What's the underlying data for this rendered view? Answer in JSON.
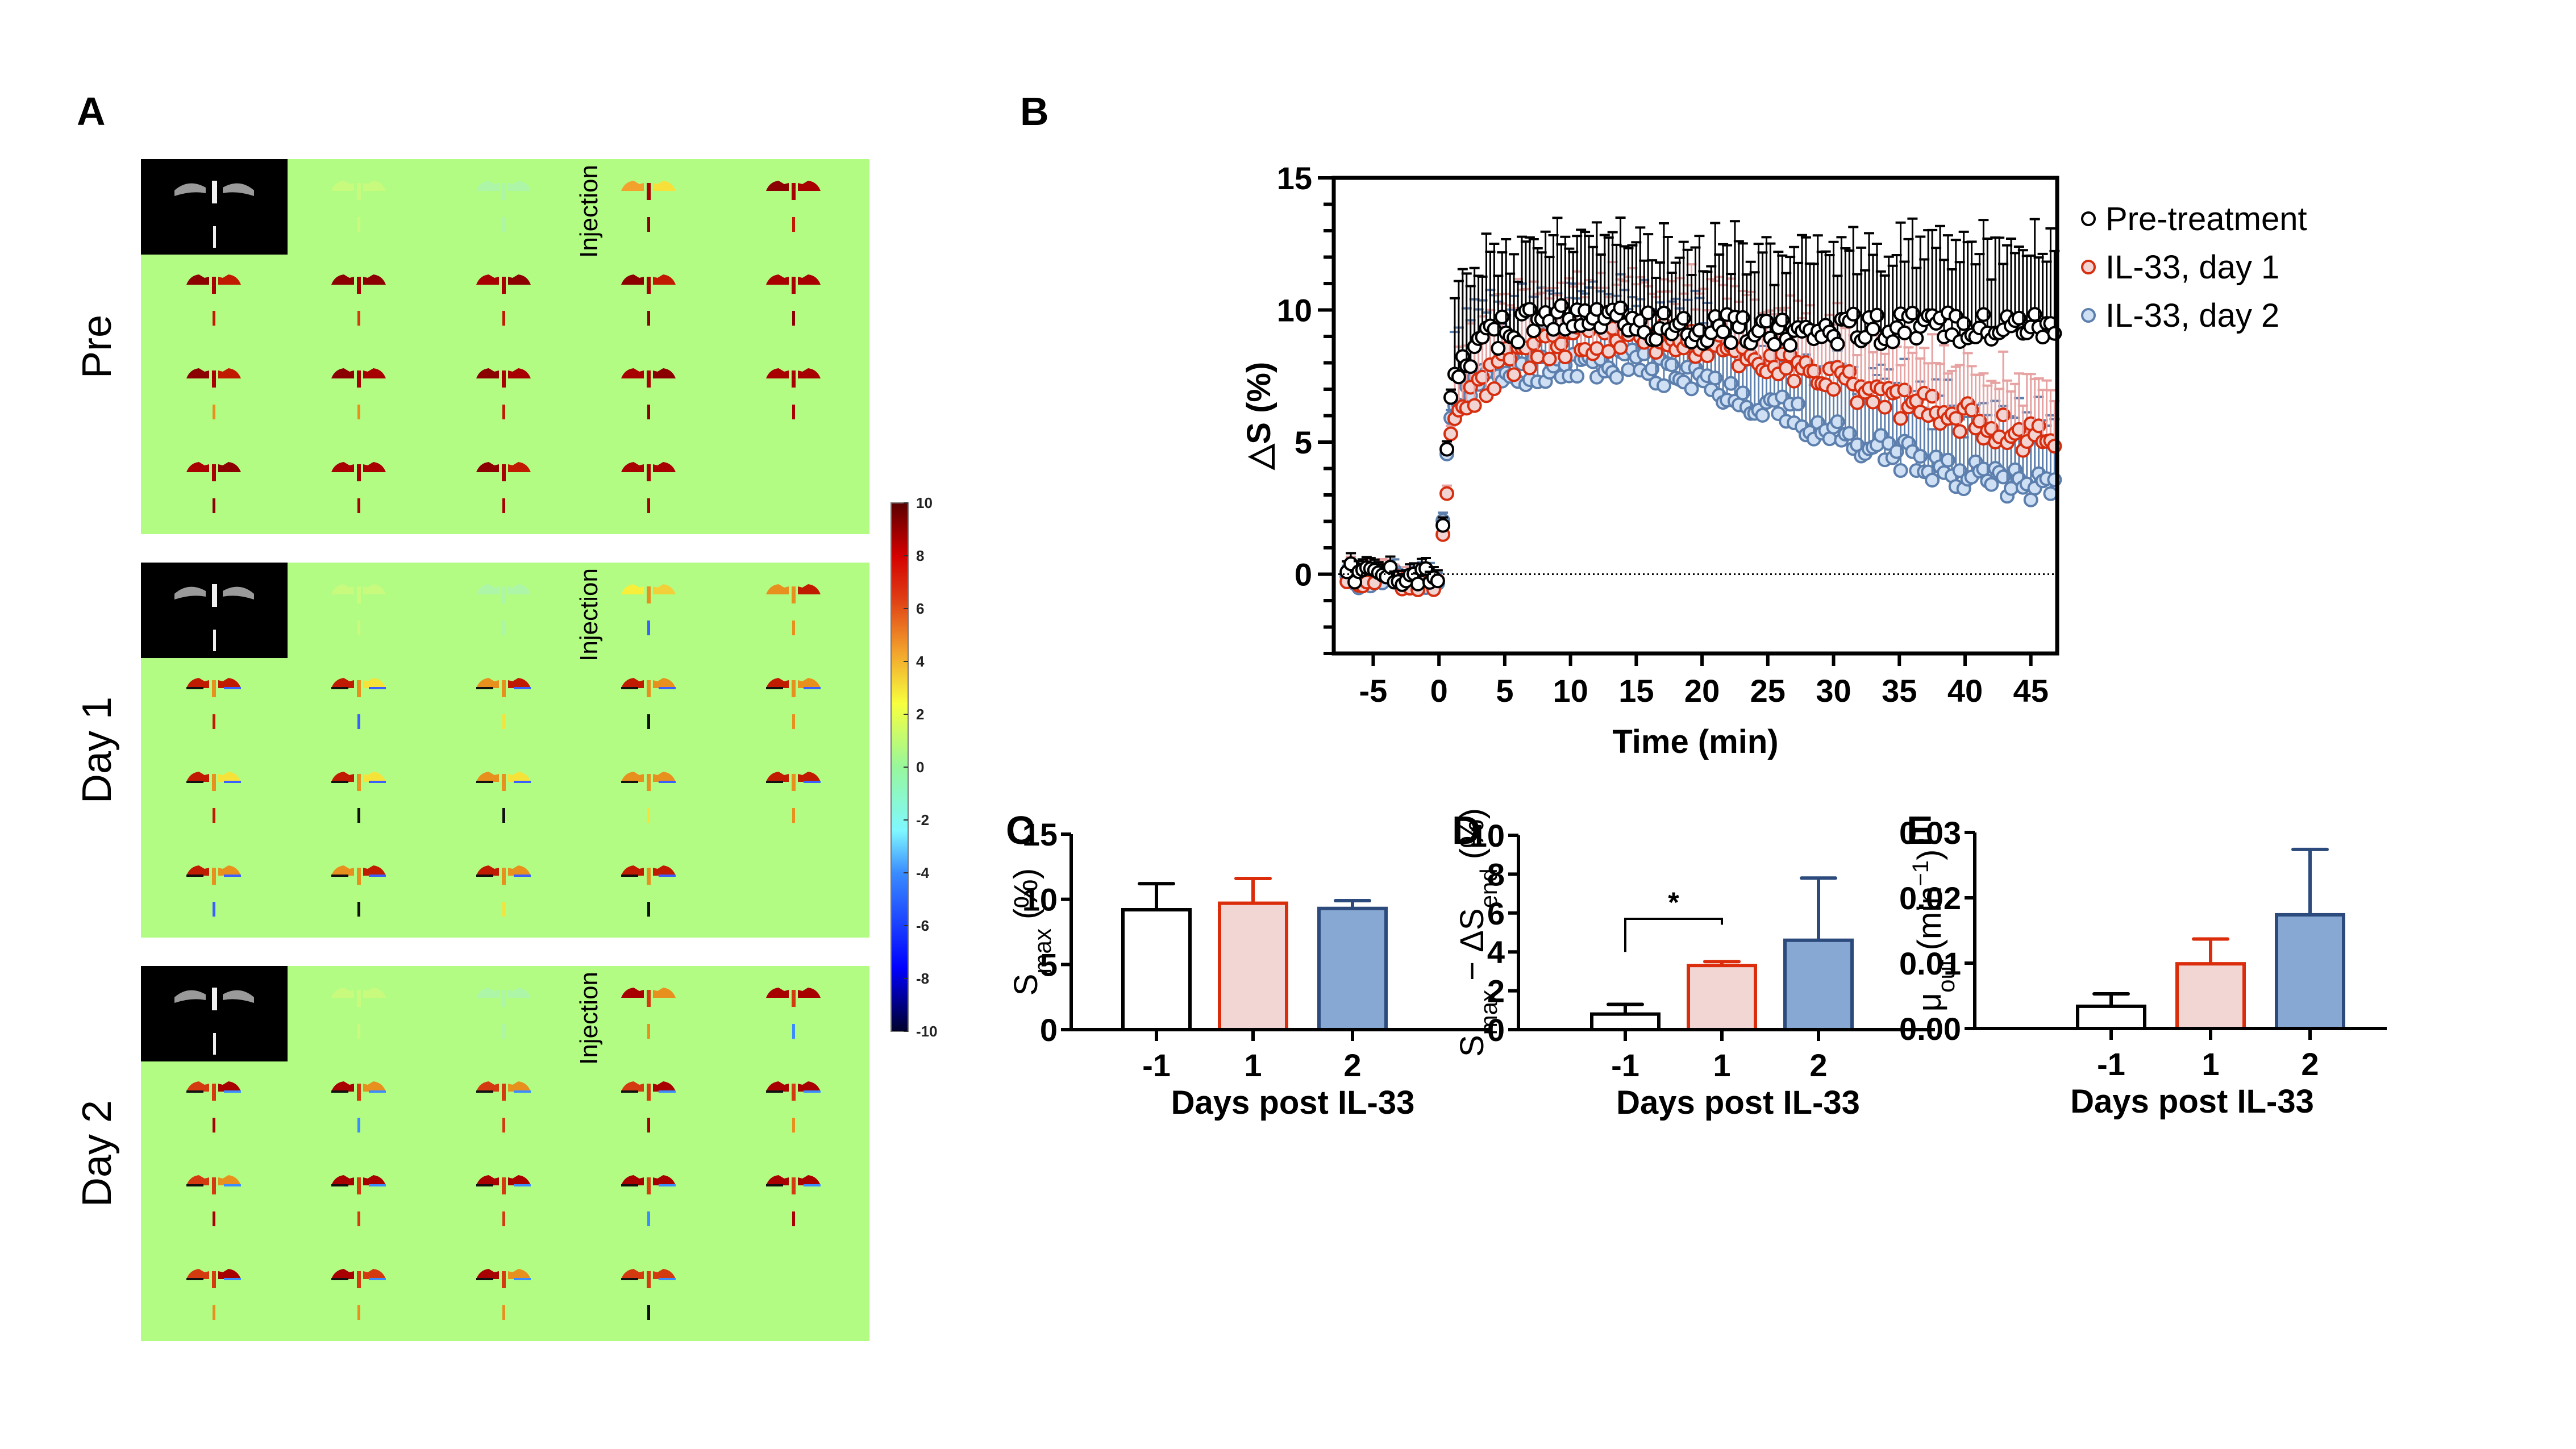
{
  "figure": {
    "panel_letters": {
      "a": "A",
      "b": "B",
      "c": "C",
      "d": "D",
      "e": "E"
    }
  },
  "panel_a": {
    "rows": [
      {
        "label": "Pre",
        "injection_label": "Injection",
        "frames": 19,
        "intensity": "strong-positive"
      },
      {
        "label": "Day 1",
        "injection_label": "Injection",
        "frames": 19,
        "intensity": "mixed"
      },
      {
        "label": "Day 2",
        "injection_label": "Injection",
        "frames": 19,
        "intensity": "positive-with-negative-edges"
      }
    ],
    "background_color": "#b3fc84",
    "colorbar": {
      "ticks": [
        "10",
        "8",
        "6",
        "4",
        "2",
        "0",
        "-2",
        "-4",
        "-6",
        "-8",
        "-10"
      ],
      "range": [
        -10,
        10
      ],
      "colormap": "jet"
    }
  },
  "chart_data": [
    {
      "id": "B",
      "type": "scatter",
      "title": "",
      "xlabel": "Time (min)",
      "ylabel": "△S (%)",
      "xlim": [
        -8,
        47
      ],
      "ylim": [
        -3,
        15
      ],
      "xticks": [
        "-5",
        "0",
        "5",
        "10",
        "15",
        "20",
        "25",
        "30",
        "35",
        "40",
        "45"
      ],
      "xtick_values": [
        -5,
        0,
        5,
        10,
        15,
        20,
        25,
        30,
        35,
        40,
        45
      ],
      "yticks": [
        "0",
        "5",
        "10",
        "15"
      ],
      "ytick_values": [
        0,
        5,
        10,
        15
      ],
      "reference_line_y": 0,
      "legend": "top-right-outside",
      "series": [
        {
          "name": "Pre-treatment",
          "color": "#000000",
          "fill": "#ffffff",
          "baseline": 0.0,
          "plateau": 9.5,
          "decay_start": 47,
          "end_value": 9.4,
          "sd_upper": 2.8,
          "key_points": [
            [
              -7,
              0.0
            ],
            [
              0,
              -0.1
            ],
            [
              0.3,
              1.3
            ],
            [
              0.6,
              4.3
            ],
            [
              0.9,
              6.9
            ],
            [
              2,
              8.3
            ],
            [
              5,
              9.3
            ],
            [
              10,
              9.7
            ],
            [
              15,
              9.5
            ],
            [
              20,
              9.3
            ],
            [
              25,
              9.2
            ],
            [
              30,
              9.3
            ],
            [
              35,
              9.3
            ],
            [
              40,
              9.4
            ],
            [
              45,
              9.6
            ],
            [
              47,
              9.3
            ]
          ]
        },
        {
          "name": "IL-33, day 1",
          "color": "#d62e0e",
          "fill": "#f2d4d3",
          "baseline": -0.2,
          "key_points": [
            [
              -7,
              -0.1
            ],
            [
              0,
              -0.3
            ],
            [
              0.3,
              1.7
            ],
            [
              0.6,
              3.4
            ],
            [
              0.9,
              4.9
            ],
            [
              2,
              6.5
            ],
            [
              5,
              8.0
            ],
            [
              10,
              8.8
            ],
            [
              15,
              9.0
            ],
            [
              20,
              8.7
            ],
            [
              25,
              8.0
            ],
            [
              30,
              7.3
            ],
            [
              35,
              6.5
            ],
            [
              40,
              5.9
            ],
            [
              45,
              5.2
            ],
            [
              47,
              5.3
            ]
          ],
          "sd_upper": 2.0
        },
        {
          "name": "IL-33, day 2",
          "color": "#5c7fad",
          "fill": "#cfe0f5",
          "baseline": -0.3,
          "key_points": [
            [
              -7,
              -0.2
            ],
            [
              0,
              -0.2
            ],
            [
              0.3,
              2.1
            ],
            [
              0.6,
              4.5
            ],
            [
              0.9,
              5.8
            ],
            [
              2,
              7.2
            ],
            [
              5,
              7.6
            ],
            [
              10,
              8.0
            ],
            [
              15,
              7.9
            ],
            [
              20,
              7.3
            ],
            [
              25,
              6.4
            ],
            [
              30,
              5.3
            ],
            [
              35,
              4.5
            ],
            [
              40,
              3.8
            ],
            [
              45,
              3.4
            ],
            [
              47,
              3.7
            ]
          ],
          "sd_upper": 2.4
        }
      ]
    },
    {
      "id": "C",
      "type": "bar",
      "xlabel": "Days post IL-33",
      "ylabel_main": "S",
      "ylabel_sub": "max",
      "ylabel_suffix": " (%)",
      "categories": [
        "-1",
        "1",
        "2"
      ],
      "values": [
        9.2,
        9.7,
        9.3
      ],
      "error_upper": [
        11.2,
        11.6,
        9.9
      ],
      "ylim": [
        0,
        15
      ],
      "yticks": [
        "0",
        "5",
        "10",
        "15"
      ],
      "ytick_values": [
        0,
        5,
        10,
        15
      ]
    },
    {
      "id": "D",
      "type": "bar",
      "xlabel": "Days post IL-33",
      "ylabel_main": "S",
      "ylabel_sub": "max",
      "ylabel_mid": " − ΔS",
      "ylabel_sub2": "end",
      "ylabel_suffix": " (%)",
      "categories": [
        "-1",
        "1",
        "2"
      ],
      "values": [
        0.8,
        3.3,
        4.6
      ],
      "error_upper": [
        1.3,
        3.5,
        7.8
      ],
      "ylim": [
        0,
        10
      ],
      "yticks": [
        "0",
        "2",
        "4",
        "6",
        "8",
        "10"
      ],
      "ytick_values": [
        0,
        2,
        4,
        6,
        8,
        10
      ],
      "annotation": {
        "text": "*",
        "between": [
          "-1",
          "1"
        ]
      }
    },
    {
      "id": "E",
      "type": "bar",
      "xlabel": "Days post IL-33",
      "ylabel_main": "μ",
      "ylabel_sub": "out",
      "ylabel_suffix": "   (min",
      "ylabel_sup": "−1",
      "ylabel_close": ")",
      "categories": [
        "-1",
        "1",
        "2"
      ],
      "values": [
        0.0034,
        0.0099,
        0.0174
      ],
      "error_upper": [
        0.0053,
        0.0137,
        0.0274
      ],
      "ylim": [
        0,
        0.03
      ],
      "yticks": [
        "0.00",
        "0.01",
        "0.02",
        "0.03"
      ],
      "ytick_values": [
        0,
        0.01,
        0.02,
        0.03
      ]
    }
  ],
  "bar_styles": [
    {
      "fill": "#ffffff",
      "stroke": "#000000"
    },
    {
      "fill": "#f2d6d4",
      "stroke": "#db2d0b"
    },
    {
      "fill": "#87a8d3",
      "stroke": "#2c4b7c"
    }
  ]
}
